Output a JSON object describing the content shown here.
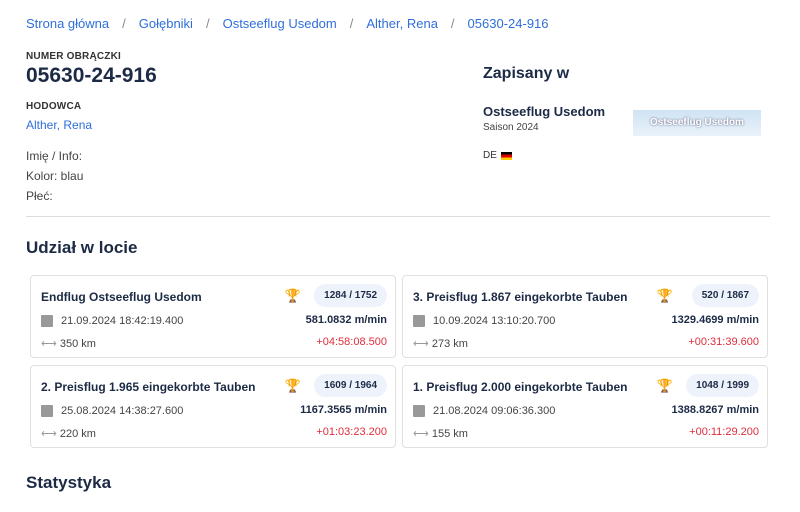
{
  "breadcrumb": [
    "Strona główna",
    "Gołębniki",
    "Ostseeflug Usedom",
    "Alther, Rena",
    "05630-24-916"
  ],
  "ring_label": "NUMER OBRĄCZKI",
  "ring": "05630-24-916",
  "breeder_label": "HODOWCA",
  "breeder": "Alther, Rena",
  "info": [
    "Imię / Info:",
    "Kolor: blau",
    "Płeć:"
  ],
  "registered": {
    "title": "Zapisany w",
    "club": "Ostseeflug Usedom",
    "season": "Saison 2024",
    "logo_text": "Ostseeflug Usedom",
    "country": "DE"
  },
  "flights_title": "Udział w locie",
  "flights": [
    {
      "name": "Endflug Ostseeflug Usedom",
      "place": "1284 / 1752",
      "date": "21.09.2024 18:42:19.400",
      "speed": "581.0832 m/min",
      "distance": "350 km",
      "delta": "+04:58:08.500"
    },
    {
      "name": "3. Preisflug 1.867 eingekorbte Tauben",
      "place": "520 / 1867",
      "date": "10.09.2024 13:10:20.700",
      "speed": "1329.4699 m/min",
      "distance": "273 km",
      "delta": "+00:31:39.600"
    },
    {
      "name": "2. Preisflug 1.965 eingekorbte Tauben",
      "place": "1609 / 1964",
      "date": "25.08.2024 14:38:27.600",
      "speed": "1167.3565 m/min",
      "distance": "220 km",
      "delta": "+01:03:23.200"
    },
    {
      "name": "1. Preisflug 2.000 eingekorbte Tauben",
      "place": "1048 / 1999",
      "date": "21.08.2024 09:06:36.300",
      "speed": "1388.8267 m/min",
      "distance": "155 km",
      "delta": "+00:11:29.200"
    }
  ],
  "stats_title": "Statystyka"
}
